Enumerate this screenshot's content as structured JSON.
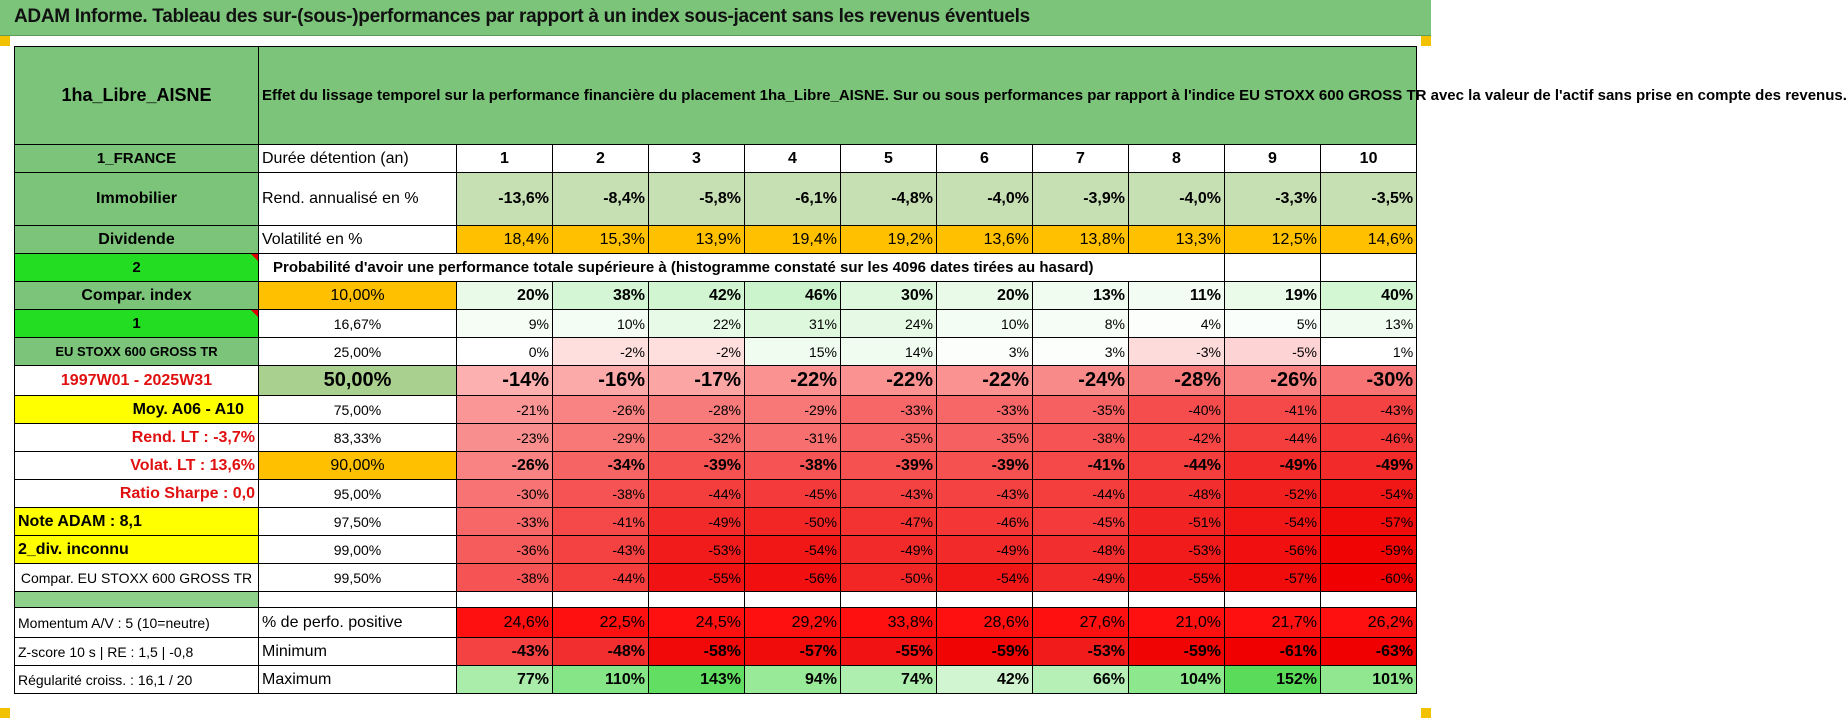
{
  "title": "ADAM Informe. Tableau des sur-(sous-)performances par rapport à un index sous-jacent sans les revenus éventuels",
  "fund_name": "1ha_Libre_AISNE",
  "description": "Effet du lissage temporel sur la performance financière du placement 1ha_Libre_AISNE. Sur ou sous performances par rapport à l'indice EU STOXX 600 GROSS TR avec la valeur de l'actif sans prise en compte des revenus.",
  "left": {
    "country": "1_FRANCE",
    "category": "Immobilier",
    "dividend": "Dividende",
    "num2": "2",
    "compar_index": "Compar. index",
    "num1": "1",
    "index_name": "EU STOXX 600 GROSS TR",
    "period": "1997W01 - 2025W31",
    "moy": "Moy. A06 - A10",
    "rend_lt": "Rend. LT :   -3,7%",
    "volat_lt": "Volat. LT :   13,6%",
    "sharpe": "Ratio Sharpe :   0,0",
    "note": "Note ADAM : 8,1",
    "div": "2_div. inconnu",
    "compar_full": "Compar. EU STOXX 600 GROSS TR",
    "momentum": "Momentum A/V : 5 (10=neutre)",
    "zscore": "Z-score 10 s  |  RE : 1,5  |  -0,8",
    "regularite": "Régularité croiss. : 16,1 / 20"
  },
  "labels": {
    "duree": "Durée détention (an)",
    "rend": "Rend. annualisé en %",
    "volat": "Volatilité en %",
    "proba": "Probabilité d'avoir une performance totale supérieure à (histogramme constaté sur les 4096 dates tirées au hasard)",
    "perf_pos": "% de perfo. positive",
    "minimum": "Minimum",
    "maximum": "Maximum"
  },
  "years": [
    "1",
    "2",
    "3",
    "4",
    "5",
    "6",
    "7",
    "8",
    "9",
    "10"
  ],
  "rend": [
    "-13,6%",
    "-8,4%",
    "-5,8%",
    "-6,1%",
    "-4,8%",
    "-4,0%",
    "-3,9%",
    "-4,0%",
    "-3,3%",
    "-3,5%"
  ],
  "volat": [
    "18,4%",
    "15,3%",
    "13,9%",
    "19,4%",
    "19,2%",
    "13,6%",
    "13,8%",
    "13,3%",
    "12,5%",
    "14,6%"
  ],
  "pct_rows": [
    {
      "p": "10,00%",
      "v": [
        "20%",
        "38%",
        "42%",
        "46%",
        "30%",
        "20%",
        "13%",
        "11%",
        "19%",
        "40%"
      ]
    },
    {
      "p": "16,67%",
      "v": [
        "9%",
        "10%",
        "22%",
        "31%",
        "24%",
        "10%",
        "8%",
        "4%",
        "5%",
        "13%"
      ]
    },
    {
      "p": "25,00%",
      "v": [
        "0%",
        "-2%",
        "-2%",
        "15%",
        "14%",
        "3%",
        "3%",
        "-3%",
        "-5%",
        "1%"
      ]
    },
    {
      "p": "50,00%",
      "v": [
        "-14%",
        "-16%",
        "-17%",
        "-22%",
        "-22%",
        "-22%",
        "-24%",
        "-28%",
        "-26%",
        "-30%"
      ]
    },
    {
      "p": "75,00%",
      "v": [
        "-21%",
        "-26%",
        "-28%",
        "-29%",
        "-33%",
        "-33%",
        "-35%",
        "-40%",
        "-41%",
        "-43%"
      ]
    },
    {
      "p": "83,33%",
      "v": [
        "-23%",
        "-29%",
        "-32%",
        "-31%",
        "-35%",
        "-35%",
        "-38%",
        "-42%",
        "-44%",
        "-46%"
      ]
    },
    {
      "p": "90,00%",
      "v": [
        "-26%",
        "-34%",
        "-39%",
        "-38%",
        "-39%",
        "-39%",
        "-41%",
        "-44%",
        "-49%",
        "-49%"
      ]
    },
    {
      "p": "95,00%",
      "v": [
        "-30%",
        "-38%",
        "-44%",
        "-45%",
        "-43%",
        "-43%",
        "-44%",
        "-48%",
        "-52%",
        "-54%"
      ]
    },
    {
      "p": "97,50%",
      "v": [
        "-33%",
        "-41%",
        "-49%",
        "-50%",
        "-47%",
        "-46%",
        "-45%",
        "-51%",
        "-54%",
        "-57%"
      ]
    },
    {
      "p": "99,00%",
      "v": [
        "-36%",
        "-43%",
        "-53%",
        "-54%",
        "-49%",
        "-49%",
        "-48%",
        "-53%",
        "-56%",
        "-59%"
      ]
    },
    {
      "p": "99,50%",
      "v": [
        "-38%",
        "-44%",
        "-55%",
        "-56%",
        "-50%",
        "-54%",
        "-49%",
        "-55%",
        "-57%",
        "-60%"
      ]
    }
  ],
  "perf_pos": [
    "24,6%",
    "22,5%",
    "24,5%",
    "29,2%",
    "33,8%",
    "28,6%",
    "27,6%",
    "21,0%",
    "21,7%",
    "26,2%"
  ],
  "minimum": [
    "-43%",
    "-48%",
    "-58%",
    "-57%",
    "-55%",
    "-59%",
    "-53%",
    "-59%",
    "-61%",
    "-63%"
  ],
  "maximum": [
    "77%",
    "110%",
    "143%",
    "94%",
    "74%",
    "42%",
    "66%",
    "104%",
    "152%",
    "101%"
  ]
}
